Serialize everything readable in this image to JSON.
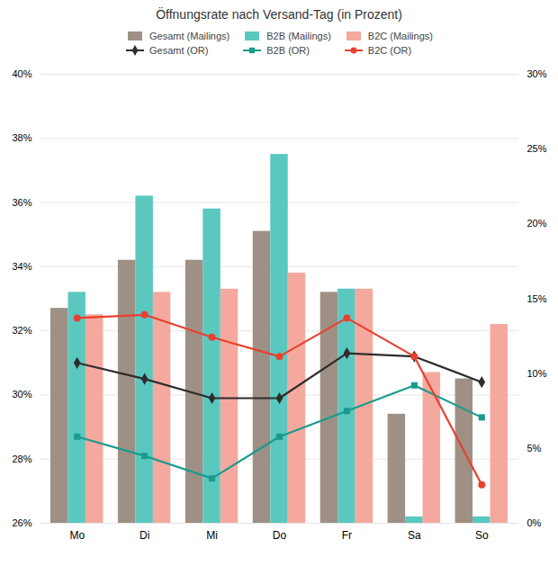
{
  "chart_data": {
    "type": "bar",
    "title": "Öffnungsrate nach Versand-Tag (in Prozent)",
    "categories": [
      "Mo",
      "Di",
      "Mi",
      "Do",
      "Fr",
      "Sa",
      "So"
    ],
    "series": [
      {
        "name": "Gesamt (Mailings)",
        "type": "bar",
        "color": "#9e9084",
        "values": [
          32.7,
          34.2,
          34.2,
          35.1,
          33.2,
          29.4,
          30.5
        ]
      },
      {
        "name": "B2B (Mailings)",
        "type": "bar",
        "color": "#5bc8c0",
        "values": [
          33.2,
          36.2,
          35.8,
          37.5,
          33.3,
          26.2,
          26.2
        ]
      },
      {
        "name": "B2C (Mailings)",
        "type": "bar",
        "color": "#f5a99e",
        "values": [
          32.5,
          33.2,
          33.3,
          33.8,
          33.3,
          30.7,
          32.2
        ]
      },
      {
        "name": "Gesamt (OR)",
        "type": "line",
        "color": "#2d2d2d",
        "marker": "diamond",
        "values": [
          31.0,
          30.5,
          29.9,
          29.9,
          31.3,
          31.2,
          30.4
        ]
      },
      {
        "name": "B2B (OR)",
        "type": "line",
        "color": "#1a9b8e",
        "marker": "square",
        "values": [
          28.7,
          28.1,
          27.4,
          28.7,
          29.5,
          30.3,
          29.3
        ]
      },
      {
        "name": "B2C (OR)",
        "type": "line",
        "color": "#e84030",
        "marker": "circle",
        "values": [
          32.4,
          32.5,
          31.8,
          31.2,
          32.4,
          31.2,
          27.2
        ]
      }
    ],
    "ylim": [
      26,
      40
    ],
    "yticks": [
      {
        "value": 26,
        "label": "26%"
      },
      {
        "value": 28,
        "label": "28%"
      },
      {
        "value": 30,
        "label": "30%"
      },
      {
        "value": 32,
        "label": "32%"
      },
      {
        "value": 34,
        "label": "34%"
      },
      {
        "value": 36,
        "label": "36%"
      },
      {
        "value": 38,
        "label": "38%"
      },
      {
        "value": 40,
        "label": "40%"
      }
    ],
    "y2lim": [
      0,
      30
    ],
    "y2ticks": [
      {
        "value": 0,
        "label": "0%"
      },
      {
        "value": 5,
        "label": "5%"
      },
      {
        "value": 10,
        "label": "10%"
      },
      {
        "value": 15,
        "label": "15%"
      },
      {
        "value": 20,
        "label": "20%"
      },
      {
        "value": 25,
        "label": "25%"
      },
      {
        "value": 30,
        "label": "30%"
      }
    ],
    "grid": true,
    "legend": "top"
  }
}
